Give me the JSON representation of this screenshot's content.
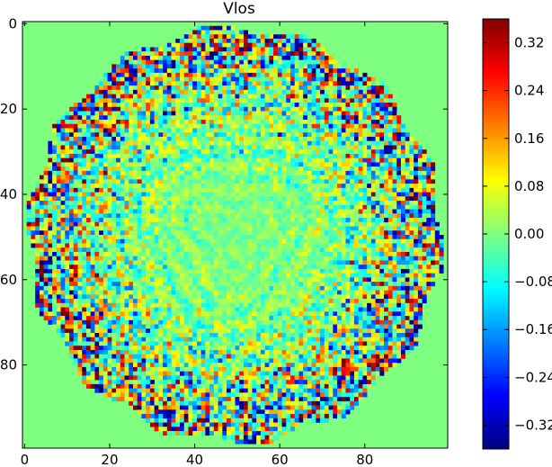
{
  "chart_data": {
    "type": "heatmap",
    "title": "Vlos",
    "xlabel": "",
    "ylabel": "",
    "xlim": [
      -0.5,
      99.5
    ],
    "ylim": [
      99.5,
      -0.5
    ],
    "grid_size": [
      100,
      100
    ],
    "x_ticks": [
      0,
      20,
      40,
      60,
      80
    ],
    "y_ticks": [
      0,
      20,
      40,
      60,
      80
    ],
    "x_tick_labels": [
      "0",
      "20",
      "40",
      "60",
      "80"
    ],
    "y_tick_labels": [
      "0",
      "20",
      "40",
      "60",
      "80"
    ],
    "colormap": "jet",
    "vmin": -0.36,
    "vmax": 0.36,
    "background_value": 0.0,
    "disk": {
      "center": [
        49.5,
        49.5
      ],
      "radius": 48.5
    },
    "colorbar": {
      "ticks": [
        0.32,
        0.24,
        0.16,
        0.08,
        0.0,
        -0.08,
        -0.16,
        -0.24,
        -0.32
      ],
      "tick_labels": [
        "0.32",
        "0.24",
        "0.16",
        "0.08",
        "0.00",
        "−0.08",
        "−0.16",
        "−0.24",
        "−0.32"
      ]
    }
  },
  "colors": {
    "frame": "#000000",
    "background": "#ffffff",
    "jet_stops": [
      "#00007f",
      "#0000ff",
      "#007fff",
      "#00ffff",
      "#7fff7f",
      "#ffff00",
      "#ff7f00",
      "#ff0000",
      "#7f0000"
    ]
  }
}
